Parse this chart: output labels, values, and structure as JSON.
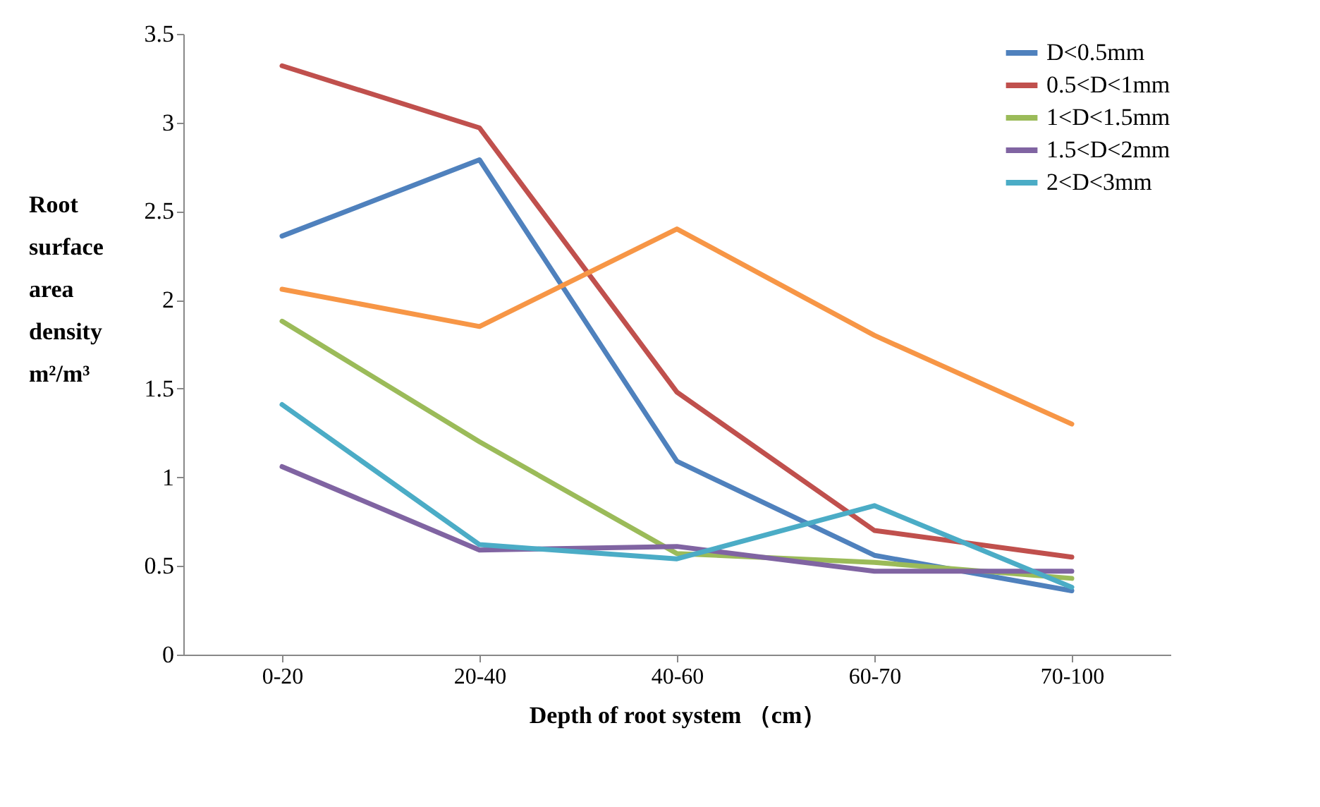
{
  "chart_data": {
    "type": "line",
    "xlabel": "Depth of root system （cm）",
    "ylabel": "Root\nsurface\narea\ndensity\nm²/m³",
    "categories": [
      "0-20",
      "20-40",
      "40-60",
      "60-70",
      "70-100"
    ],
    "series": [
      {
        "name": "D<0.5mm",
        "color": "#4f81bd",
        "values": [
          2.36,
          2.79,
          1.09,
          0.56,
          0.36
        ]
      },
      {
        "name": "0.5<D<1mm",
        "color": "#c0504d",
        "values": [
          3.32,
          2.97,
          1.48,
          0.7,
          0.55
        ]
      },
      {
        "name": "1<D<1.5mm",
        "color": "#9bbb59",
        "values": [
          1.88,
          1.2,
          0.57,
          0.52,
          0.43
        ]
      },
      {
        "name": "1.5<D<2mm",
        "color": "#8064a2",
        "values": [
          1.06,
          0.59,
          0.61,
          0.47,
          0.47
        ]
      },
      {
        "name": "2<D<3mm",
        "color": "#4bacc6",
        "values": [
          1.41,
          0.62,
          0.54,
          0.84,
          0.38
        ]
      },
      {
        "color": "#f79646",
        "values": [
          2.06,
          1.85,
          2.4,
          1.8,
          1.3
        ]
      }
    ],
    "ylim": [
      0,
      3.5
    ],
    "yticks": [
      0,
      0.5,
      1,
      1.5,
      2,
      2.5,
      3,
      3.5
    ],
    "grid": false,
    "legend": "top right",
    "marker": "none",
    "line_style": "solid"
  }
}
